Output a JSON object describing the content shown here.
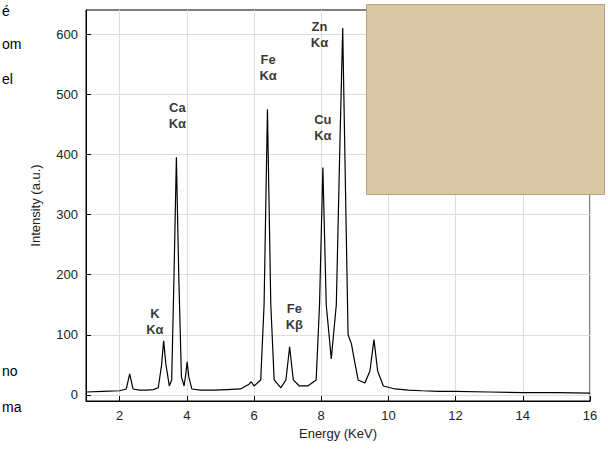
{
  "chart_data": {
    "type": "line",
    "x_label": "Energy (KeV)",
    "y_label": "Intensity (a.u.)",
    "xlim": [
      1,
      16
    ],
    "xticks": [
      2,
      4,
      6,
      8,
      10,
      12,
      14,
      16
    ],
    "ylim": [
      -10,
      640
    ],
    "yticks": [
      0,
      100,
      200,
      300,
      400,
      500,
      600
    ],
    "grid": true,
    "color": "#000000",
    "marker": "none",
    "x": [
      1.0,
      1.5,
      2.0,
      2.2,
      2.3,
      2.4,
      2.6,
      2.8,
      3.0,
      3.15,
      3.25,
      3.31,
      3.38,
      3.48,
      3.55,
      3.62,
      3.69,
      3.76,
      3.84,
      3.92,
      3.97,
      4.01,
      4.06,
      4.15,
      4.4,
      4.8,
      5.2,
      5.6,
      5.85,
      5.92,
      6.0,
      6.2,
      6.3,
      6.4,
      6.5,
      6.6,
      6.8,
      6.95,
      7.06,
      7.17,
      7.35,
      7.6,
      7.85,
      7.95,
      8.05,
      8.15,
      8.3,
      8.45,
      8.55,
      8.64,
      8.72,
      8.8,
      8.9,
      8.98,
      9.1,
      9.3,
      9.45,
      9.57,
      9.68,
      9.85,
      10.2,
      10.6,
      11.0,
      11.5,
      12.0,
      13.0,
      14.0,
      15.0,
      16.0
    ],
    "values": [
      5,
      6,
      7,
      10,
      35,
      10,
      8,
      8,
      9,
      12,
      50,
      90,
      50,
      15,
      25,
      200,
      395,
      200,
      30,
      15,
      35,
      55,
      30,
      10,
      8,
      8,
      9,
      10,
      18,
      22,
      15,
      25,
      150,
      475,
      150,
      25,
      12,
      25,
      80,
      25,
      15,
      15,
      25,
      150,
      378,
      150,
      60,
      150,
      400,
      610,
      350,
      100,
      85,
      60,
      25,
      20,
      40,
      92,
      40,
      15,
      10,
      8,
      7,
      6,
      6,
      5,
      4,
      4,
      3
    ],
    "annotations": [
      {
        "text": "K Kα",
        "x": 3.05,
        "y": 122
      },
      {
        "text": "Ca Kα",
        "x": 3.72,
        "y": 465
      },
      {
        "text": "Fe Kα",
        "x": 6.42,
        "y": 545
      },
      {
        "text": "Fe Kβ",
        "x": 7.2,
        "y": 130
      },
      {
        "text": "Cu Kα",
        "x": 8.05,
        "y": 445
      },
      {
        "text": "Zn Kα",
        "x": 7.95,
        "y": 600
      }
    ],
    "margin_text": [
      "é",
      "om",
      "el",
      "no",
      "ma"
    ]
  }
}
